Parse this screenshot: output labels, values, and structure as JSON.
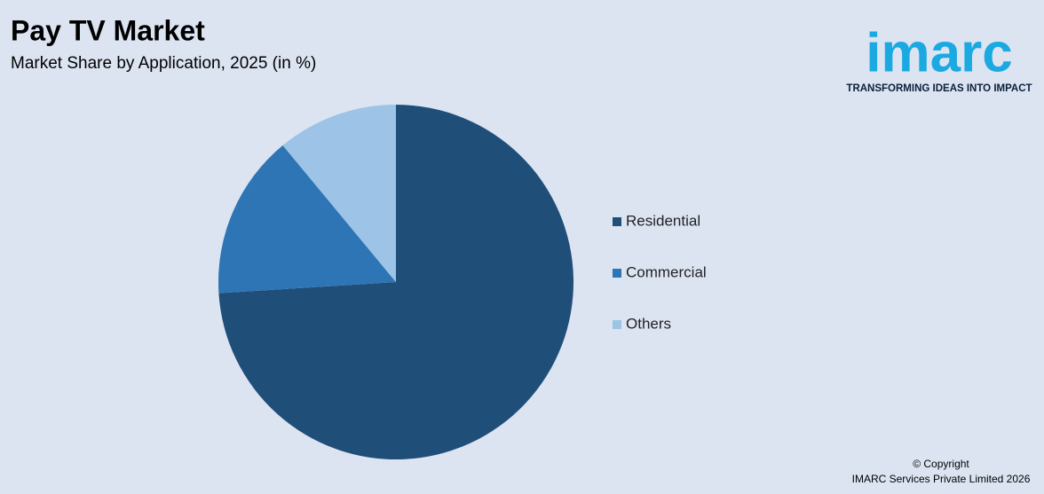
{
  "chart_data": {
    "type": "pie",
    "title": "Pay TV Market",
    "subtitle": "Market Share by Application, 2025 (in %)",
    "categories": [
      "Residential",
      "Commercial",
      "Others"
    ],
    "values": [
      74,
      15,
      11
    ],
    "colors": [
      "#1f4e79",
      "#2e75b6",
      "#9dc3e6"
    ]
  },
  "logo": {
    "name": "imarc",
    "tagline": "TRANSFORMING IDEAS INTO IMPACT"
  },
  "footer": {
    "copyright": "© Copyright",
    "company": "IMARC Services Private Limited 2026"
  }
}
